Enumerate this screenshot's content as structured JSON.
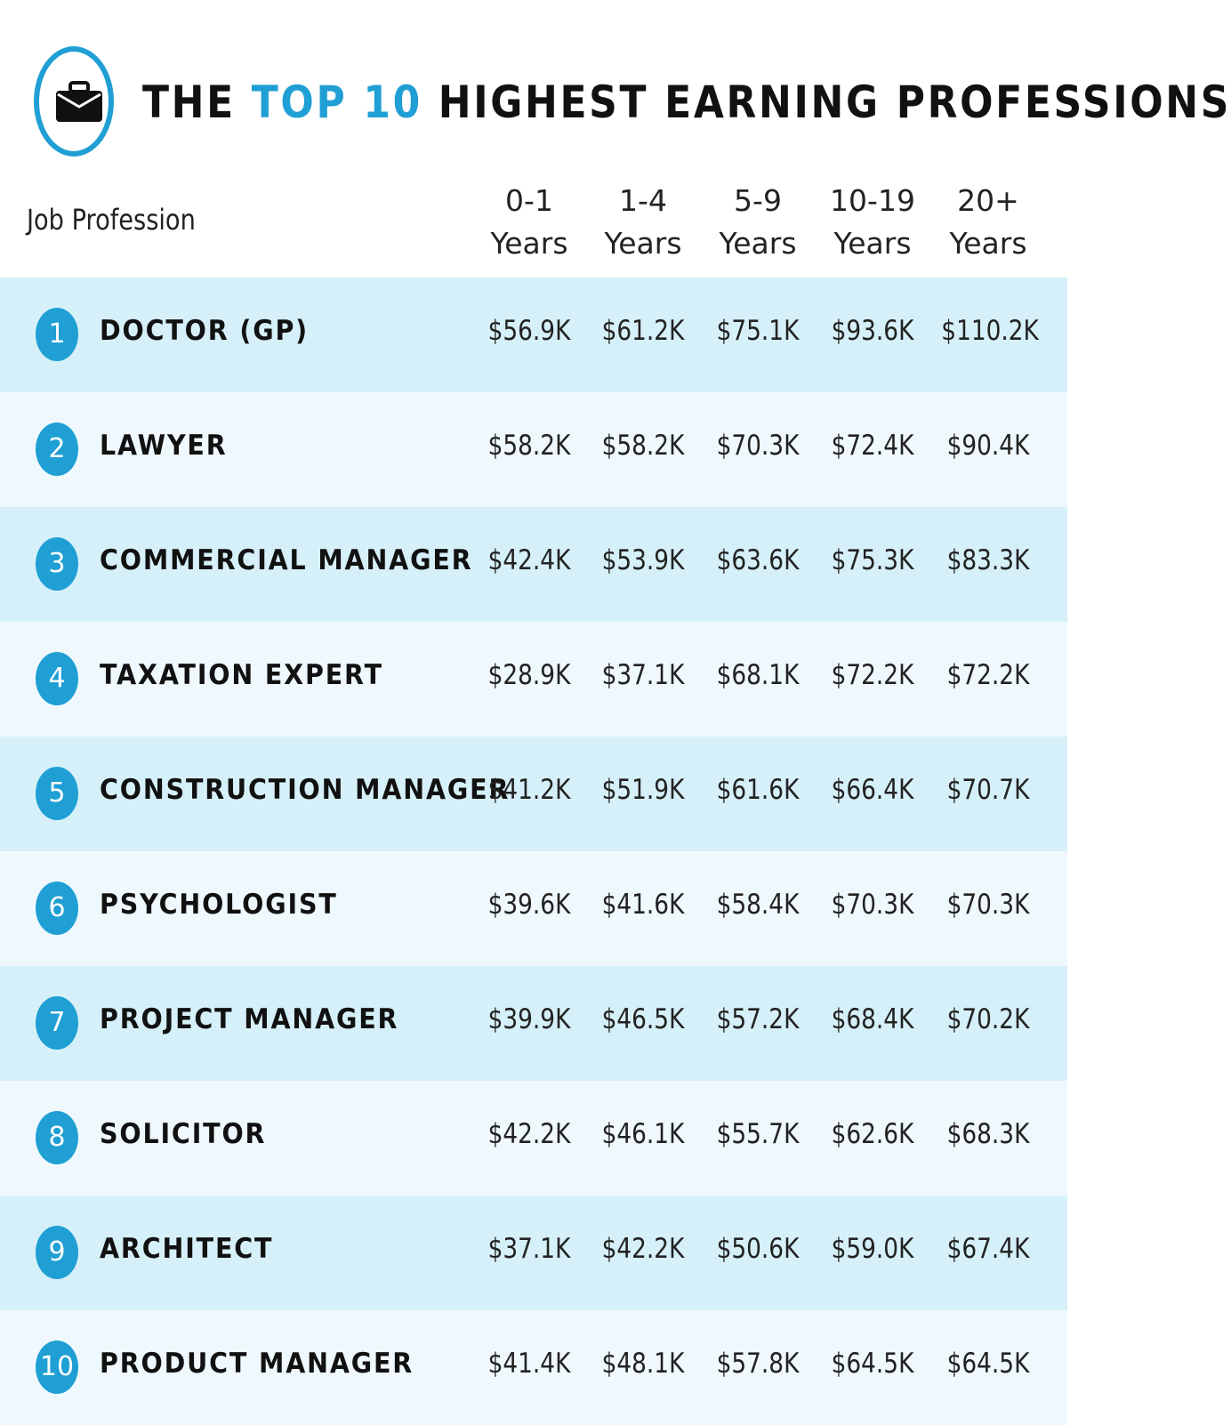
{
  "header": {
    "title_part1": "THE ",
    "title_accent": "TOP 10",
    "title_part2": " HIGHEST EARNING PROFESSIONS",
    "icon": "briefcase-icon"
  },
  "colors": {
    "accent": "#1f9fd4",
    "row_dark": "#d6f0f9",
    "row_light": "#eff9fd"
  },
  "chart_data": {
    "type": "table",
    "title": "THE TOP 10 HIGHEST EARNING PROFESSIONS",
    "row_header": "Job Profession",
    "columns": [
      {
        "line1": "0-1",
        "line2": "Years"
      },
      {
        "line1": "1-4",
        "line2": "Years"
      },
      {
        "line1": "5-9",
        "line2": "Years"
      },
      {
        "line1": "10-19",
        "line2": "Years"
      },
      {
        "line1": "20+",
        "line2": "Years"
      }
    ],
    "rows": [
      {
        "rank": "1",
        "profession": "DOCTOR (GP)",
        "values": [
          "$56.9K",
          "$61.2K",
          "$75.1K",
          "$93.6K",
          "$110.2K"
        ]
      },
      {
        "rank": "2",
        "profession": "LAWYER",
        "values": [
          "$58.2K",
          "$58.2K",
          "$70.3K",
          "$72.4K",
          "$90.4K"
        ]
      },
      {
        "rank": "3",
        "profession": "COMMERCIAL MANAGER",
        "values": [
          "$42.4K",
          "$53.9K",
          "$63.6K",
          "$75.3K",
          "$83.3K"
        ]
      },
      {
        "rank": "4",
        "profession": "TAXATION EXPERT",
        "values": [
          "$28.9K",
          "$37.1K",
          "$68.1K",
          "$72.2K",
          "$72.2K"
        ]
      },
      {
        "rank": "5",
        "profession": "CONSTRUCTION MANAGER",
        "values": [
          "$41.2K",
          "$51.9K",
          "$61.6K",
          "$66.4K",
          "$70.7K"
        ]
      },
      {
        "rank": "6",
        "profession": "PSYCHOLOGIST",
        "values": [
          "$39.6K",
          "$41.6K",
          "$58.4K",
          "$70.3K",
          "$70.3K"
        ]
      },
      {
        "rank": "7",
        "profession": "PROJECT MANAGER",
        "values": [
          "$39.9K",
          "$46.5K",
          "$57.2K",
          "$68.4K",
          "$70.2K"
        ]
      },
      {
        "rank": "8",
        "profession": "SOLICITOR",
        "values": [
          "$42.2K",
          "$46.1K",
          "$55.7K",
          "$62.6K",
          "$68.3K"
        ]
      },
      {
        "rank": "9",
        "profession": "ARCHITECT",
        "values": [
          "$37.1K",
          "$42.2K",
          "$50.6K",
          "$59.0K",
          "$67.4K"
        ]
      },
      {
        "rank": "10",
        "profession": "PRODUCT MANAGER",
        "values": [
          "$41.4K",
          "$48.1K",
          "$57.8K",
          "$64.5K",
          "$64.5K"
        ]
      }
    ]
  }
}
